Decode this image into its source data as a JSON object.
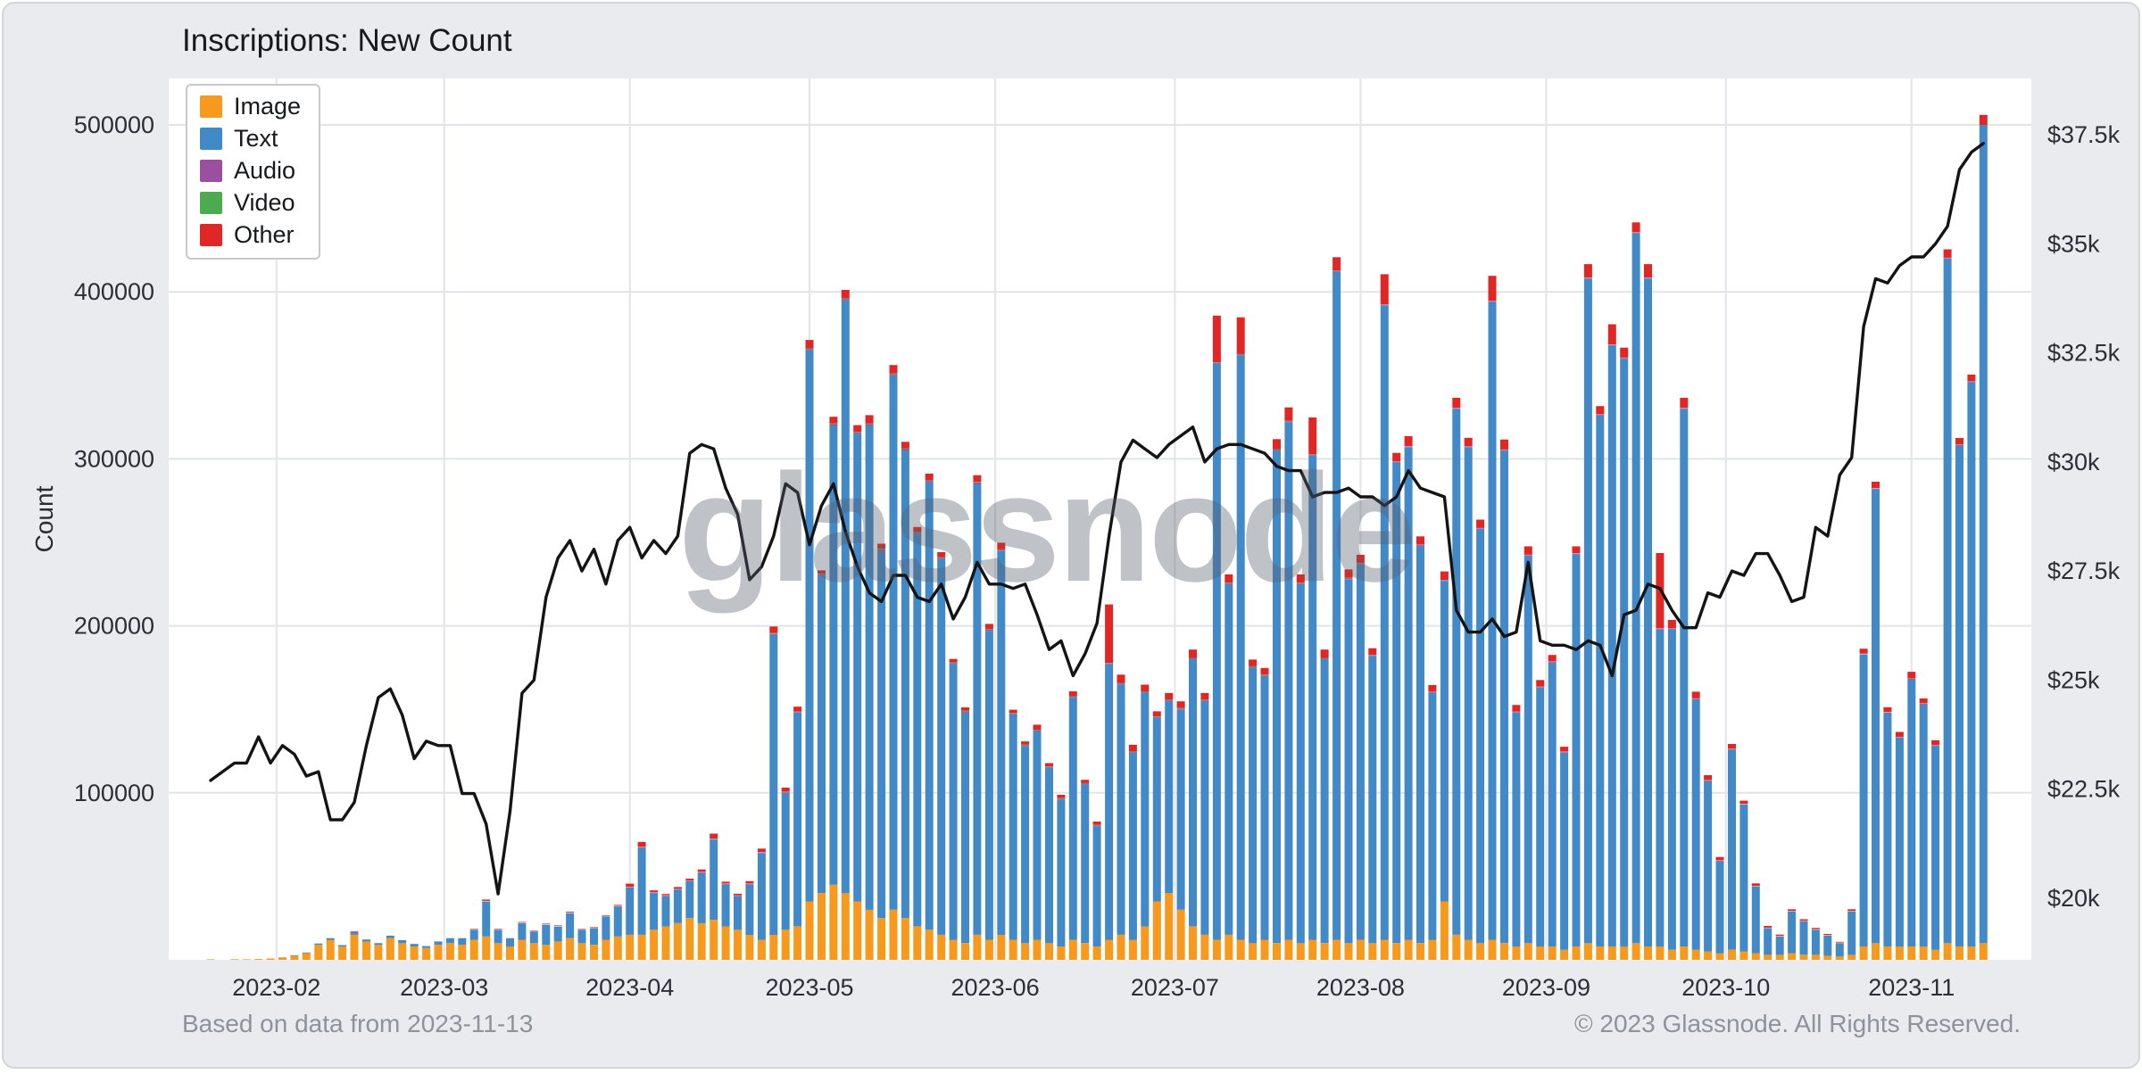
{
  "page": {
    "title": "Inscriptions: New Count",
    "y_axis_label": "Count",
    "watermark": "glassnode",
    "footer_left": "Based on data from 2023-11-13",
    "footer_right": "© 2023 Glassnode. All Rights Reserved."
  },
  "chart_data": {
    "type": "bar",
    "stacked": true,
    "title": "Inscriptions: New Count",
    "grid": true,
    "legend_position": "top-left",
    "x_ticks": [
      "2023-02",
      "2023-03",
      "2023-04",
      "2023-05",
      "2023-06",
      "2023-07",
      "2023-08",
      "2023-09",
      "2023-10",
      "2023-11"
    ],
    "left_axis": {
      "label": "Count",
      "tick_labels": [
        "100000",
        "200000",
        "300000",
        "400000",
        "500000"
      ],
      "tick_values": [
        100000,
        200000,
        300000,
        400000,
        500000
      ],
      "range": [
        0,
        528000
      ]
    },
    "right_axis": {
      "tick_labels": [
        "$20k",
        "$22.5k",
        "$25k",
        "$27.5k",
        "$30k",
        "$32.5k",
        "$35k",
        "$37.5k"
      ],
      "tick_values": [
        20000,
        22500,
        25000,
        27500,
        30000,
        32500,
        35000,
        37500
      ]
    },
    "x": [
      "2023-01-21",
      "2023-01-23",
      "2023-01-25",
      "2023-01-27",
      "2023-01-29",
      "2023-01-31",
      "2023-02-02",
      "2023-02-04",
      "2023-02-06",
      "2023-02-08",
      "2023-02-10",
      "2023-02-12",
      "2023-02-14",
      "2023-02-16",
      "2023-02-18",
      "2023-02-20",
      "2023-02-22",
      "2023-02-24",
      "2023-02-26",
      "2023-02-28",
      "2023-03-02",
      "2023-03-04",
      "2023-03-06",
      "2023-03-08",
      "2023-03-10",
      "2023-03-12",
      "2023-03-14",
      "2023-03-16",
      "2023-03-18",
      "2023-03-20",
      "2023-03-22",
      "2023-03-24",
      "2023-03-26",
      "2023-03-28",
      "2023-03-30",
      "2023-04-01",
      "2023-04-03",
      "2023-04-05",
      "2023-04-07",
      "2023-04-09",
      "2023-04-11",
      "2023-04-13",
      "2023-04-15",
      "2023-04-17",
      "2023-04-19",
      "2023-04-21",
      "2023-04-23",
      "2023-04-25",
      "2023-04-27",
      "2023-04-29",
      "2023-05-01",
      "2023-05-03",
      "2023-05-05",
      "2023-05-07",
      "2023-05-09",
      "2023-05-11",
      "2023-05-13",
      "2023-05-15",
      "2023-05-17",
      "2023-05-19",
      "2023-05-21",
      "2023-05-23",
      "2023-05-25",
      "2023-05-27",
      "2023-05-29",
      "2023-05-31",
      "2023-06-02",
      "2023-06-04",
      "2023-06-06",
      "2023-06-08",
      "2023-06-10",
      "2023-06-12",
      "2023-06-14",
      "2023-06-16",
      "2023-06-18",
      "2023-06-20",
      "2023-06-22",
      "2023-06-24",
      "2023-06-26",
      "2023-06-28",
      "2023-06-30",
      "2023-07-02",
      "2023-07-04",
      "2023-07-06",
      "2023-07-08",
      "2023-07-10",
      "2023-07-12",
      "2023-07-14",
      "2023-07-16",
      "2023-07-18",
      "2023-07-20",
      "2023-07-22",
      "2023-07-24",
      "2023-07-26",
      "2023-07-28",
      "2023-07-30",
      "2023-08-01",
      "2023-08-03",
      "2023-08-05",
      "2023-08-07",
      "2023-08-09",
      "2023-08-11",
      "2023-08-13",
      "2023-08-15",
      "2023-08-17",
      "2023-08-19",
      "2023-08-21",
      "2023-08-23",
      "2023-08-25",
      "2023-08-27",
      "2023-08-29",
      "2023-08-31",
      "2023-09-02",
      "2023-09-04",
      "2023-09-06",
      "2023-09-08",
      "2023-09-10",
      "2023-09-12",
      "2023-09-14",
      "2023-09-16",
      "2023-09-18",
      "2023-09-20",
      "2023-09-22",
      "2023-09-24",
      "2023-09-26",
      "2023-09-28",
      "2023-09-30",
      "2023-10-02",
      "2023-10-04",
      "2023-10-06",
      "2023-10-08",
      "2023-10-10",
      "2023-10-12",
      "2023-10-14",
      "2023-10-16",
      "2023-10-18",
      "2023-10-20",
      "2023-10-22",
      "2023-10-24",
      "2023-10-26",
      "2023-10-28",
      "2023-10-30",
      "2023-11-01",
      "2023-11-03",
      "2023-11-05",
      "2023-11-07",
      "2023-11-09",
      "2023-11-11",
      "2023-11-13"
    ],
    "series": [
      {
        "name": "Image",
        "color": "#f6991d",
        "values": [
          300,
          200,
          400,
          300,
          500,
          800,
          1500,
          2500,
          4000,
          9000,
          12000,
          8000,
          15000,
          11000,
          9000,
          13000,
          10000,
          8000,
          7000,
          9000,
          10000,
          9000,
          12000,
          14000,
          10000,
          8000,
          12000,
          10000,
          9000,
          11000,
          13000,
          10000,
          9000,
          12000,
          14000,
          15000,
          15000,
          18000,
          20000,
          22000,
          25000,
          22000,
          24000,
          20000,
          18000,
          15000,
          12000,
          15000,
          18000,
          20000,
          35000,
          40000,
          45000,
          40000,
          35000,
          30000,
          25000,
          30000,
          25000,
          20000,
          18000,
          15000,
          12000,
          10000,
          15000,
          12000,
          15000,
          12000,
          10000,
          12000,
          10000,
          8000,
          12000,
          10000,
          8000,
          12000,
          15000,
          12000,
          20000,
          35000,
          40000,
          30000,
          20000,
          15000,
          12000,
          15000,
          12000,
          10000,
          12000,
          10000,
          12000,
          10000,
          12000,
          10000,
          12000,
          10000,
          12000,
          10000,
          12000,
          10000,
          12000,
          10000,
          12000,
          35000,
          15000,
          12000,
          10000,
          12000,
          10000,
          8000,
          10000,
          8000,
          8000,
          6000,
          8000,
          10000,
          8000,
          8000,
          8000,
          10000,
          8000,
          8000,
          6000,
          8000,
          6000,
          5000,
          4000,
          6000,
          5000,
          4000,
          3000,
          3000,
          4000,
          3000,
          3000,
          2500,
          2000,
          3000,
          8000,
          10000,
          8000,
          8000,
          8000,
          8000,
          6000,
          10000,
          8000,
          8000,
          10000
        ]
      },
      {
        "name": "Text",
        "color": "#4289c8",
        "values": [
          0,
          0,
          0,
          0,
          0,
          100,
          200,
          300,
          400,
          800,
          1000,
          800,
          1500,
          1200,
          1000,
          1500,
          1800,
          1500,
          1200,
          2000,
          3000,
          4000,
          6000,
          21000,
          8000,
          5000,
          10000,
          7000,
          12000,
          9000,
          15000,
          8000,
          10000,
          14000,
          18000,
          28000,
          52000,
          22000,
          18000,
          20000,
          22000,
          30000,
          48000,
          25000,
          20000,
          30000,
          52000,
          180000,
          82000,
          128000,
          330000,
          190000,
          275000,
          355000,
          280000,
          290000,
          220000,
          320000,
          280000,
          235000,
          268000,
          225000,
          165000,
          138000,
          270000,
          185000,
          230000,
          135000,
          118000,
          125000,
          105000,
          88000,
          145000,
          95000,
          72000,
          165000,
          150000,
          112000,
          140000,
          110000,
          115000,
          120000,
          160000,
          140000,
          345000,
          210000,
          350000,
          165000,
          158000,
          295000,
          310000,
          215000,
          290000,
          170000,
          400000,
          218000,
          225000,
          172000,
          380000,
          288000,
          295000,
          238000,
          148000,
          192000,
          315000,
          295000,
          248000,
          382000,
          295000,
          140000,
          232000,
          155000,
          170000,
          118000,
          235000,
          398000,
          318000,
          360000,
          352000,
          425000,
          400000,
          190000,
          192000,
          322000,
          150000,
          102000,
          55000,
          120000,
          88000,
          40000,
          16000,
          11000,
          25000,
          20000,
          15000,
          12000,
          8000,
          26000,
          175000,
          272000,
          140000,
          125000,
          160000,
          145000,
          122000,
          410000,
          300000,
          338000,
          490000
        ]
      },
      {
        "name": "Audio",
        "color": "#9b4f9e",
        "values": [
          0,
          0,
          0,
          0,
          0,
          0,
          0,
          0,
          0,
          0,
          0,
          0,
          0,
          0,
          0,
          0,
          0,
          0,
          0,
          0,
          200,
          200,
          200,
          200,
          200,
          200,
          200,
          200,
          200,
          200,
          200,
          200,
          200,
          200,
          200,
          400,
          400,
          400,
          400,
          400,
          400,
          400,
          400,
          400,
          400,
          400,
          400,
          400,
          400,
          400,
          800,
          800,
          800,
          800,
          800,
          800,
          800,
          800,
          800,
          800,
          800,
          800,
          800,
          800,
          800,
          800,
          500,
          500,
          500,
          500,
          500,
          500,
          500,
          500,
          500,
          500,
          500,
          500,
          500,
          500,
          500,
          500,
          500,
          500,
          500,
          500,
          500,
          500,
          500,
          500,
          500,
          500,
          500,
          500,
          500,
          500,
          400,
          400,
          400,
          400,
          400,
          400,
          400,
          400,
          400,
          400,
          400,
          400,
          400,
          400,
          400,
          400,
          400,
          400,
          400,
          400,
          400,
          400,
          400,
          400,
          400,
          400,
          400,
          400,
          400,
          400,
          400,
          200,
          200,
          200,
          200,
          200,
          200,
          200,
          200,
          200,
          200,
          200,
          200,
          200,
          200,
          300,
          300,
          300,
          300,
          300,
          300,
          300
        ]
      },
      {
        "name": "Video",
        "color": "#4cab50",
        "values": [
          0,
          0,
          0,
          0,
          0,
          0,
          0,
          0,
          0,
          0,
          0,
          0,
          0,
          0,
          0,
          0,
          0,
          0,
          0,
          0,
          100,
          100,
          100,
          100,
          100,
          100,
          100,
          100,
          100,
          100,
          100,
          100,
          100,
          100,
          100,
          200,
          200,
          200,
          200,
          200,
          200,
          200,
          200,
          200,
          200,
          200,
          200,
          200,
          200,
          200,
          400,
          400,
          400,
          400,
          400,
          400,
          400,
          400,
          400,
          400,
          400,
          400,
          400,
          400,
          400,
          400,
          300,
          300,
          300,
          300,
          300,
          300,
          300,
          300,
          300,
          300,
          300,
          300,
          300,
          300,
          300,
          300,
          300,
          300,
          300,
          300,
          300,
          300,
          300,
          300,
          300,
          300,
          300,
          300,
          300,
          300,
          200,
          200,
          200,
          200,
          200,
          200,
          200,
          200,
          200,
          200,
          200,
          200,
          200,
          200,
          200,
          200,
          200,
          200,
          200,
          200,
          200,
          200,
          200,
          200,
          200,
          200,
          200,
          200,
          200,
          200,
          200,
          100,
          100,
          100,
          100,
          100,
          100,
          100,
          100,
          100,
          100,
          100,
          100,
          100,
          100,
          200,
          200,
          200,
          200,
          200,
          200,
          200
        ]
      },
      {
        "name": "Other",
        "color": "#e12726",
        "values": [
          0,
          0,
          0,
          0,
          0,
          0,
          0,
          0,
          0,
          0,
          0,
          0,
          500,
          0,
          0,
          0,
          0,
          0,
          0,
          0,
          200,
          200,
          300,
          800,
          300,
          200,
          400,
          300,
          400,
          300,
          500,
          300,
          300,
          400,
          600,
          2000,
          3000,
          1000,
          800,
          1000,
          1000,
          1500,
          3000,
          1200,
          1000,
          1500,
          2000,
          4000,
          2500,
          3000,
          5000,
          2000,
          4000,
          5000,
          4000,
          5000,
          3000,
          5000,
          4000,
          3000,
          4000,
          3000,
          2000,
          2000,
          4000,
          3000,
          4000,
          2000,
          2000,
          3000,
          2000,
          2000,
          3000,
          2000,
          2000,
          35000,
          5000,
          4000,
          4000,
          3000,
          4000,
          4000,
          5000,
          4000,
          28000,
          5000,
          22000,
          4000,
          4000,
          6000,
          8000,
          5000,
          22000,
          5000,
          8000,
          5000,
          5000,
          4000,
          18000,
          5000,
          6000,
          5000,
          4000,
          5000,
          6000,
          5000,
          5000,
          15000,
          6000,
          4000,
          5000,
          4000,
          4000,
          3000,
          4000,
          8000,
          5000,
          12000,
          6000,
          6000,
          8000,
          45000,
          5000,
          6000,
          4000,
          3000,
          2000,
          3000,
          2000,
          1500,
          1000,
          800,
          1000,
          1000,
          800,
          700,
          500,
          1000,
          3000,
          4000,
          3000,
          3000,
          4000,
          3000,
          3000,
          5000,
          4000,
          4000,
          6000
        ]
      }
    ],
    "line": {
      "color": "#141414",
      "axis": "right",
      "values": [
        22700,
        22900,
        23100,
        23100,
        23700,
        23100,
        23500,
        23300,
        22800,
        22900,
        21800,
        21800,
        22200,
        23500,
        24600,
        24800,
        24200,
        23200,
        23600,
        23500,
        23500,
        22400,
        22400,
        21700,
        20100,
        22000,
        24700,
        25000,
        26900,
        27800,
        28200,
        27500,
        28000,
        27200,
        28200,
        28500,
        27800,
        28200,
        27900,
        28300,
        30200,
        30400,
        30300,
        29400,
        28800,
        27300,
        27600,
        28300,
        29500,
        29300,
        28100,
        29000,
        29500,
        28400,
        27600,
        27000,
        26800,
        27400,
        27400,
        26900,
        26800,
        27200,
        26400,
        26900,
        27700,
        27200,
        27200,
        27100,
        27200,
        26500,
        25700,
        25900,
        25100,
        25600,
        26300,
        28300,
        30000,
        30500,
        30300,
        30100,
        30400,
        30600,
        30800,
        30000,
        30300,
        30400,
        30400,
        30300,
        30200,
        29900,
        29800,
        29800,
        29200,
        29300,
        29300,
        29400,
        29200,
        29200,
        29000,
        29200,
        29800,
        29400,
        29300,
        29200,
        26600,
        26100,
        26100,
        26400,
        26000,
        26100,
        27700,
        25900,
        25800,
        25800,
        25700,
        25900,
        25800,
        25100,
        26500,
        26600,
        27200,
        27100,
        26600,
        26200,
        26200,
        27000,
        26900,
        27500,
        27400,
        27900,
        27900,
        27400,
        26800,
        26900,
        28500,
        28300,
        29700,
        30100,
        33100,
        34200,
        34100,
        34500,
        34700,
        34700,
        35000,
        35400,
        36700,
        37100,
        37300
      ]
    }
  }
}
